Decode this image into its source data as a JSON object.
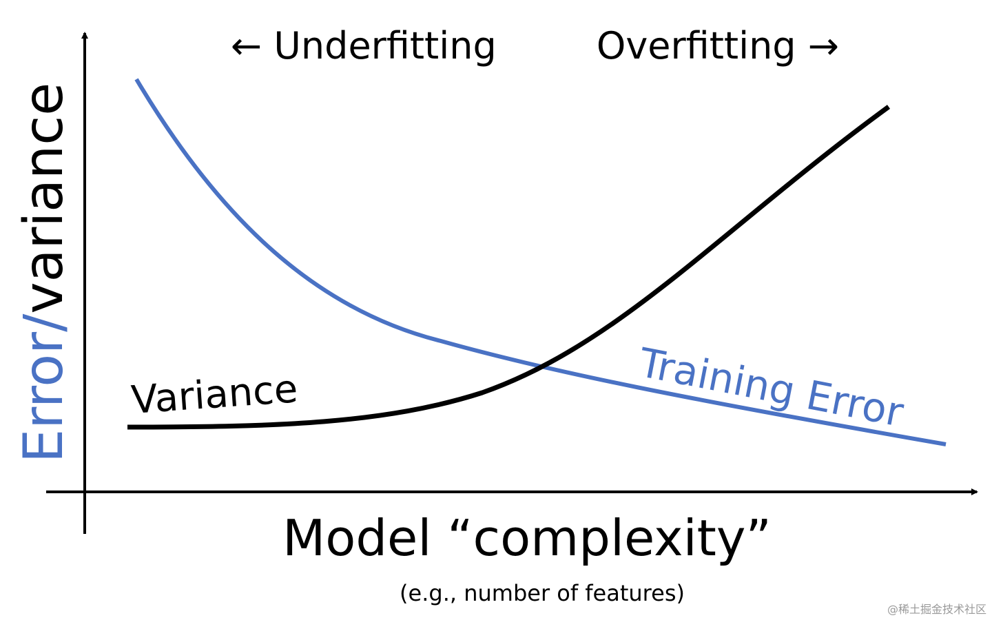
{
  "header": {
    "left": "← Underfitting",
    "right": "Overfitting →"
  },
  "y_axis": {
    "label_colored": "Error/",
    "label_plain": "variance"
  },
  "curves": {
    "variance": "Variance",
    "training_error": "Training Error"
  },
  "x_axis": {
    "label": "Model “complexity”",
    "sublabel": "(e.g., number of features)"
  },
  "watermark": "@稀土掘金技术社区"
}
